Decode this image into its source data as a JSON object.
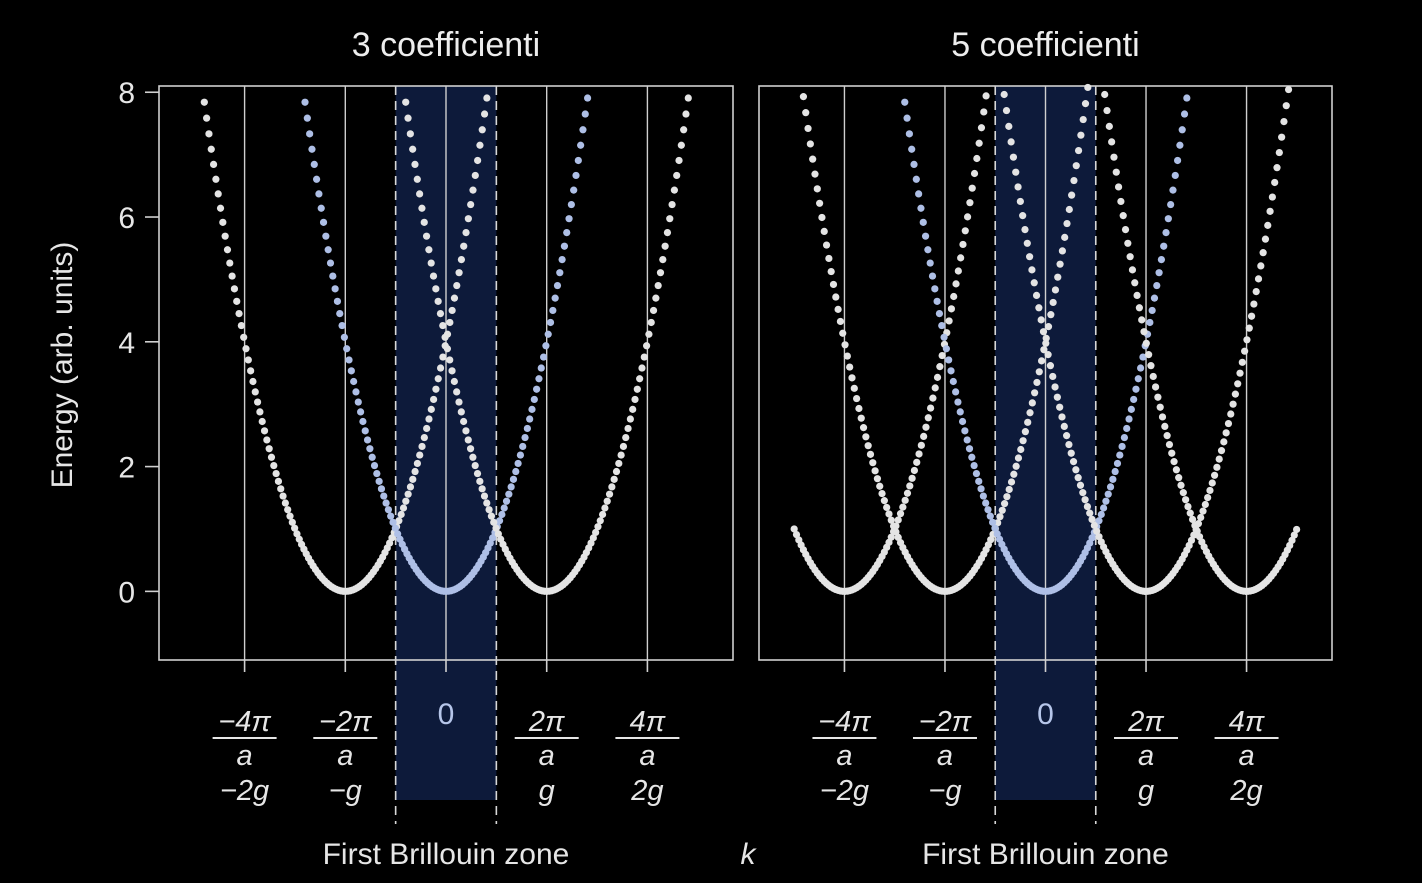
{
  "chart_data": [
    {
      "type": "scatter",
      "title": "3 coefficienti",
      "ylabel": "Energy (arb. units)",
      "xlabel": "k",
      "ylim": [
        -1.1,
        8.1
      ],
      "xlim": [
        -5.7,
        5.7
      ],
      "yticks": [
        "0",
        "2",
        "4",
        "6",
        "8"
      ],
      "xticks": [
        {
          "value": -4,
          "top": "−4π",
          "mid": "a",
          "bottom": "−2g"
        },
        {
          "value": -2,
          "top": "−2π",
          "mid": "a",
          "bottom": "−g"
        },
        {
          "value": 0,
          "top": "0",
          "mid": "",
          "bottom": ""
        },
        {
          "value": 2,
          "top": "2π",
          "mid": "a",
          "bottom": "g"
        },
        {
          "value": 4,
          "top": "4π",
          "mid": "a",
          "bottom": "2g"
        }
      ],
      "zone_label": "First Brillouin zone",
      "first_zone": [
        -1,
        1
      ],
      "series": [
        {
          "center": -2,
          "x_range": [
            -4.8,
            0.8
          ]
        },
        {
          "center": 0,
          "x_range": [
            -2.8,
            2.8
          ],
          "highlighted": true
        },
        {
          "center": 2,
          "x_range": [
            -0.8,
            4.8
          ]
        }
      ],
      "energy": "(k - center)^2"
    },
    {
      "type": "scatter",
      "title": "5 coefficienti",
      "xlabel": "k",
      "ylim": [
        -1.1,
        8.1
      ],
      "xlim": [
        -5.7,
        5.7
      ],
      "xticks": [
        {
          "value": -4,
          "top": "−4π",
          "mid": "a",
          "bottom": "−2g"
        },
        {
          "value": -2,
          "top": "−2π",
          "mid": "a",
          "bottom": "−g"
        },
        {
          "value": 0,
          "top": "0",
          "mid": "",
          "bottom": ""
        },
        {
          "value": 2,
          "top": "2π",
          "mid": "a",
          "bottom": "g"
        },
        {
          "value": 4,
          "top": "4π",
          "mid": "a",
          "bottom": "2g"
        }
      ],
      "zone_label": "First Brillouin zone",
      "first_zone": [
        -1,
        1
      ],
      "series": [
        {
          "center": -4,
          "x_range": [
            -5.0,
            0.8
          ]
        },
        {
          "center": -2,
          "x_range": [
            -5.0,
            2.8
          ]
        },
        {
          "center": 0,
          "x_range": [
            -2.8,
            2.8
          ],
          "highlighted": true
        },
        {
          "center": 2,
          "x_range": [
            -2.8,
            5.0
          ]
        },
        {
          "center": 4,
          "x_range": [
            -0.8,
            5.0
          ]
        }
      ],
      "energy": "(k - center)^2"
    }
  ],
  "colors": {
    "background": "#000000",
    "curve": "#e4e4e4",
    "highlight_curve": "#aebfe6",
    "zone_fill": "#0d1a3a",
    "frame": "#d0d0d0",
    "text": "#e6e6e6"
  }
}
